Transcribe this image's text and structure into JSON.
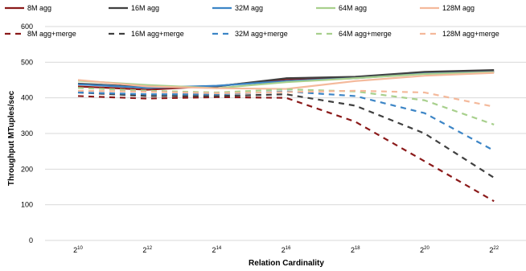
{
  "chart_data": {
    "type": "line",
    "title": "",
    "xlabel": "Relation Cardinality",
    "ylabel": "Throughput MTuples/sec",
    "ylim": [
      0,
      600
    ],
    "yticks": [
      0,
      100,
      200,
      300,
      400,
      500,
      600
    ],
    "categories": [
      {
        "base": "2",
        "exp": "10"
      },
      {
        "base": "2",
        "exp": "12"
      },
      {
        "base": "2",
        "exp": "14"
      },
      {
        "base": "2",
        "exp": "16"
      },
      {
        "base": "2",
        "exp": "18"
      },
      {
        "base": "2",
        "exp": "20"
      },
      {
        "base": "2",
        "exp": "22"
      }
    ],
    "legend_position": "top",
    "grid": "horizontal",
    "series": [
      {
        "name": "8M agg",
        "color": "#8b1a1a",
        "dashed": false,
        "values": [
          432,
          423,
          433,
          452,
          458,
          470,
          474
        ]
      },
      {
        "name": "16M agg",
        "color": "#404040",
        "dashed": false,
        "values": [
          440,
          430,
          432,
          455,
          459,
          473,
          478
        ]
      },
      {
        "name": "32M agg",
        "color": "#3c85c6",
        "dashed": false,
        "values": [
          438,
          428,
          434,
          447,
          455,
          468,
          473
        ]
      },
      {
        "name": "64M agg",
        "color": "#a8d08d",
        "dashed": false,
        "values": [
          448,
          436,
          427,
          444,
          455,
          467,
          472
        ]
      },
      {
        "name": "128M agg",
        "color": "#f4b99b",
        "dashed": false,
        "values": [
          450,
          432,
          427,
          425,
          447,
          462,
          470
        ]
      },
      {
        "name": "8M agg+merge",
        "color": "#8b1a1a",
        "dashed": true,
        "values": [
          405,
          398,
          402,
          400,
          333,
          222,
          110
        ]
      },
      {
        "name": "16M agg+merge",
        "color": "#404040",
        "dashed": true,
        "values": [
          415,
          405,
          405,
          410,
          378,
          300,
          176
        ]
      },
      {
        "name": "32M agg+merge",
        "color": "#3c85c6",
        "dashed": true,
        "values": [
          415,
          410,
          410,
          418,
          405,
          357,
          252
        ]
      },
      {
        "name": "64M agg+merge",
        "color": "#a8d08d",
        "dashed": true,
        "values": [
          428,
          420,
          415,
          424,
          418,
          393,
          325
        ]
      },
      {
        "name": "128M agg+merge",
        "color": "#f4b99b",
        "dashed": true,
        "values": [
          420,
          417,
          413,
          416,
          420,
          415,
          375
        ]
      }
    ]
  }
}
